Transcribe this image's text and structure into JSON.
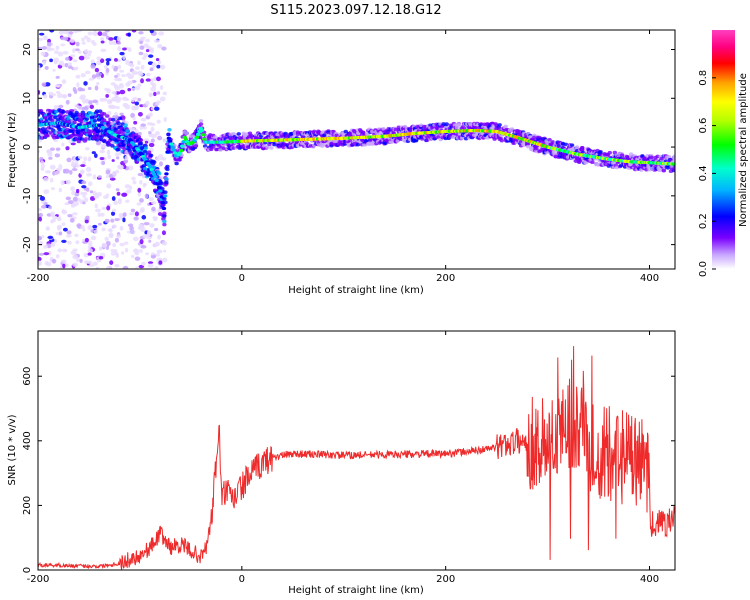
{
  "title": "S115.2023.097.12.18.G12",
  "chart_data": [
    {
      "type": "heatmap",
      "xlabel": "Height of straight line (km)",
      "ylabel": "Frequency (Hz)",
      "xlim": [
        -200,
        425
      ],
      "ylim": [
        -25,
        24
      ],
      "xticks": [
        -200,
        0,
        200,
        400
      ],
      "yticks": [
        -20,
        -10,
        0,
        10,
        20
      ],
      "colorbar": {
        "label": "Normalized spectral amplitude",
        "range": [
          0,
          1
        ],
        "ticks": [
          "0.0",
          "0.2",
          "0.4",
          "0.6",
          "0.8"
        ]
      },
      "ridge": {
        "x": [
          -198,
          -180,
          -160,
          -140,
          -125,
          -110,
          -100,
          -90,
          -85,
          -80,
          -76,
          -72,
          -68,
          -64,
          -60,
          -56,
          -52,
          -48,
          -44,
          -40,
          -36,
          -30,
          -20,
          0,
          50,
          100,
          140,
          170,
          200,
          230,
          250,
          270,
          300,
          330,
          360,
          380,
          400,
          425
        ],
        "y": [
          4.5,
          5,
          4,
          4.5,
          2.5,
          1.5,
          -1,
          -4,
          -6,
          -9,
          -13,
          2,
          0,
          -2,
          -1,
          2,
          0.5,
          1,
          2,
          4,
          1,
          1,
          1,
          1.2,
          1.5,
          1.8,
          2.2,
          2.8,
          3.2,
          3.4,
          3.2,
          2,
          0,
          -1.5,
          -2.5,
          -3,
          -3.2,
          -3.5
        ]
      }
    },
    {
      "type": "line",
      "xlabel": "Height of straight line (km)",
      "ylabel": "SNR (10 * v/v)",
      "xlim": [
        -200,
        425
      ],
      "ylim": [
        0,
        740
      ],
      "xticks": [
        -200,
        0,
        200,
        400
      ],
      "yticks": [
        0,
        200,
        400,
        600
      ],
      "color": "#ee2a2a",
      "x": [
        -200,
        -180,
        -160,
        -140,
        -120,
        -100,
        -90,
        -85,
        -80,
        -75,
        -70,
        -60,
        -50,
        -40,
        -35,
        -30,
        -26,
        -24,
        -22,
        -20,
        -15,
        -10,
        0,
        10,
        20,
        30,
        50,
        100,
        150,
        200,
        230,
        250,
        270,
        290,
        300,
        310,
        320,
        330,
        340,
        360,
        380,
        400,
        401,
        420,
        425
      ],
      "y": [
        15,
        15,
        12,
        12,
        20,
        45,
        70,
        90,
        115,
        90,
        70,
        80,
        60,
        40,
        70,
        150,
        300,
        380,
        440,
        220,
        250,
        210,
        260,
        300,
        330,
        350,
        360,
        355,
        358,
        360,
        370,
        380,
        400,
        390,
        400,
        420,
        460,
        450,
        380,
        360,
        340,
        320,
        140,
        150,
        160
      ]
    }
  ]
}
